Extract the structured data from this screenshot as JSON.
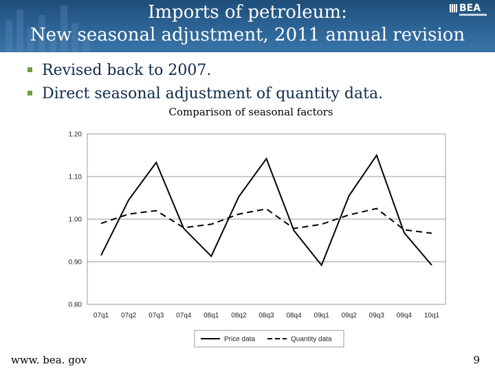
{
  "header": {
    "title_line_1": "Imports of petroleum:",
    "title_line_2": "New seasonal adjustment, 2011 annual revision",
    "logo_text": "BEA"
  },
  "bullets": [
    {
      "text": "Revised back to 2007."
    },
    {
      "text": "Direct seasonal adjustment of quantity data."
    }
  ],
  "colors": {
    "header_bg": "#2d6496",
    "bullet_marker": "#6f9c3c",
    "bullet_text": "#0f2a4a",
    "series": "#000000"
  },
  "chart_data": {
    "type": "line",
    "title": "Comparison of seasonal factors",
    "xlabel": "",
    "ylabel": "",
    "categories": [
      "07q1",
      "07q2",
      "07q3",
      "07q4",
      "08q1",
      "08q2",
      "08q3",
      "08q4",
      "09q1",
      "09q2",
      "09q3",
      "09q4",
      "10q1"
    ],
    "ylim": [
      0.8,
      1.2
    ],
    "yticks": [
      "0.80",
      "0.90",
      "1.00",
      "1.10",
      "1.20"
    ],
    "grid": true,
    "legend_position": "bottom",
    "series": [
      {
        "name": "Price data",
        "style": "solid",
        "values": [
          0.915,
          1.045,
          1.133,
          0.978,
          0.913,
          1.053,
          1.142,
          0.973,
          0.892,
          1.055,
          1.15,
          0.968,
          0.892
        ]
      },
      {
        "name": "Quantity data",
        "style": "dashed",
        "values": [
          0.99,
          1.012,
          1.02,
          0.98,
          0.988,
          1.012,
          1.024,
          0.978,
          0.988,
          1.01,
          1.025,
          0.975,
          0.967
        ]
      }
    ]
  },
  "footer": {
    "url": "www. bea. gov",
    "page_number": "9"
  }
}
